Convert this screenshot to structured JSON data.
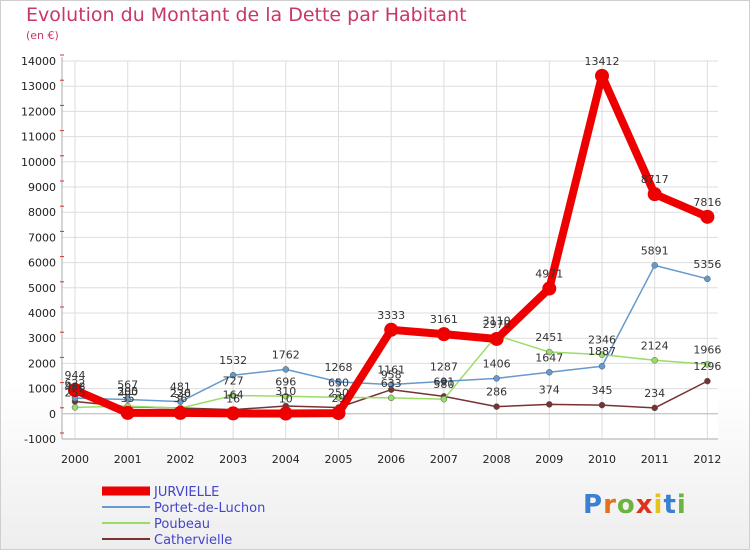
{
  "title": "Evolution du Montant de la Dette par Habitant",
  "unit": "(en €)",
  "brand": {
    "letters": [
      "P",
      "r",
      "o",
      "x",
      "i",
      "t",
      "i"
    ],
    "colors": [
      "#3a7fd0",
      "#e8701a",
      "#6cb33f",
      "#e0301e",
      "#e8c21a",
      "#3a7fd0",
      "#6cb33f"
    ]
  },
  "chart_data": {
    "type": "line",
    "x": [
      "2000",
      "2001",
      "2002",
      "2003",
      "2004",
      "2005",
      "2006",
      "2007",
      "2008",
      "2009",
      "2010",
      "2011",
      "2012"
    ],
    "y_ticks": [
      -1000,
      0,
      1000,
      2000,
      3000,
      4000,
      5000,
      6000,
      7000,
      8000,
      9000,
      10000,
      11000,
      12000,
      13000,
      14000
    ],
    "ylim": [
      -1000,
      14000
    ],
    "grid": true,
    "legend_position": "bottom-left",
    "series": [
      {
        "name": "JURVIELLE",
        "color": "#ee0000",
        "width": 8,
        "values": [
          944,
          35,
          36,
          16,
          10,
          29,
          3333,
          3161,
          2970,
          4971,
          13412,
          8717,
          7816
        ],
        "labels": [
          "944",
          "35",
          "36",
          "16",
          "10",
          "29",
          "3333",
          "3161",
          "2970",
          "4971",
          "13412",
          "8717",
          "7816"
        ]
      },
      {
        "name": "Portet-de-Luchon",
        "color": "#6699cc",
        "width": 1.5,
        "values": [
          622,
          567,
          481,
          1532,
          1762,
          1268,
          1161,
          1287,
          1406,
          1647,
          1887,
          5891,
          5356
        ],
        "labels": [
          "622",
          "567",
          "481",
          "1532",
          "1762",
          "1268",
          "1161",
          "1287",
          "1406",
          "1647",
          "1887",
          "5891",
          "5356"
        ]
      },
      {
        "name": "Poubeau",
        "color": "#99dd66",
        "width": 1.5,
        "values": [
          255,
          305,
          226,
          727,
          696,
          650,
          633,
          580,
          3110,
          2451,
          2346,
          2124,
          1966
        ],
        "labels": [
          "255",
          "305",
          "226",
          "727",
          "696",
          "650",
          "633",
          "580",
          "3110",
          "2451",
          "2346",
          "2124",
          "1966"
        ]
      },
      {
        "name": "Cathervielle",
        "color": "#773333",
        "width": 1.5,
        "values": [
          488,
          280,
          230,
          164,
          310,
          250,
          958,
          691,
          286,
          374,
          345,
          234,
          1296
        ],
        "labels": [
          "488",
          "280",
          "230",
          "164",
          "310",
          "250",
          "958",
          "691",
          "286",
          "374",
          "345",
          "234",
          "1296"
        ]
      }
    ]
  }
}
